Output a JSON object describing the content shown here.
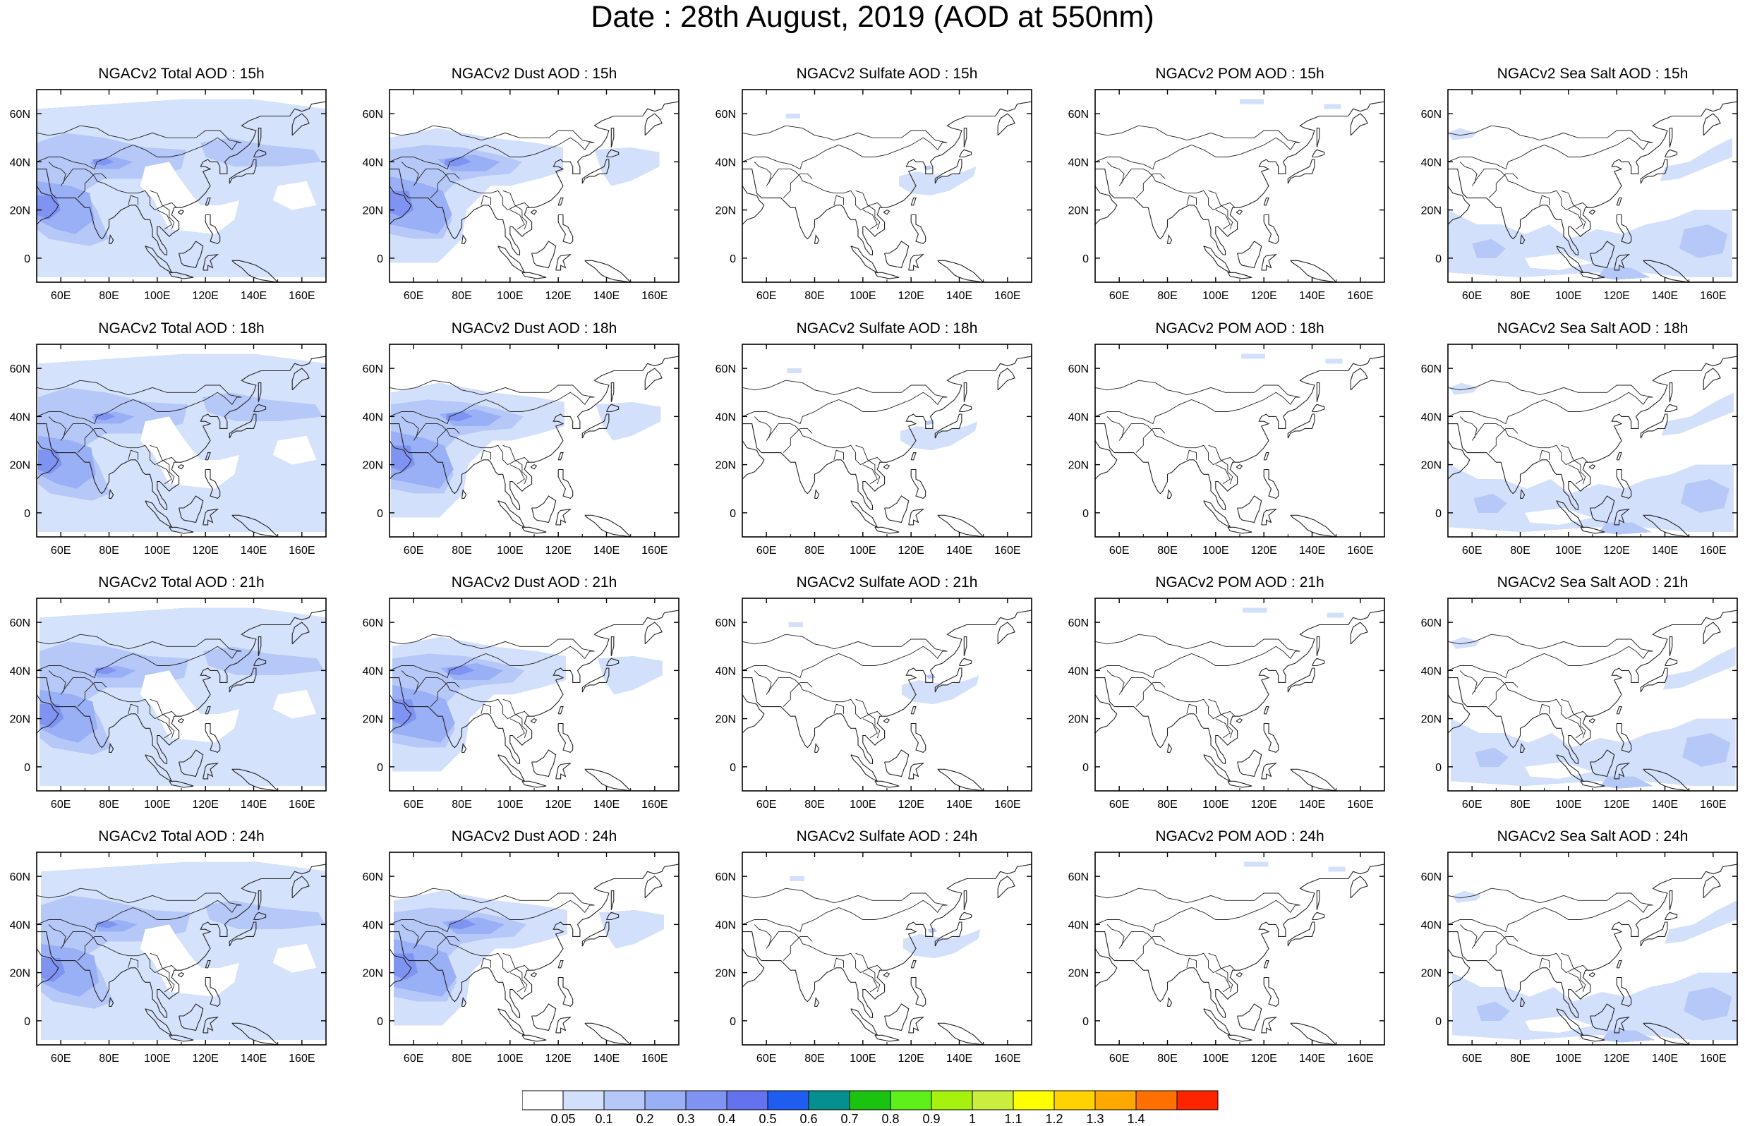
{
  "title": "Date : 28th August, 2019 (AOD at 550nm)",
  "longitude_ticks": [
    "60E",
    "80E",
    "100E",
    "120E",
    "140E",
    "160E"
  ],
  "latitude_ticks": [
    "60N",
    "40N",
    "20N",
    "0"
  ],
  "map_extent": {
    "lon": [
      50,
      170
    ],
    "lat": [
      -10,
      70
    ]
  },
  "columns": [
    "Total",
    "Dust",
    "Sulfate",
    "POM",
    "Sea Salt"
  ],
  "hours": [
    "15h",
    "18h",
    "21h",
    "24h"
  ],
  "panel_titles": [
    [
      "NGACv2 Total AOD : 15h",
      "NGACv2 Dust AOD : 15h",
      "NGACv2 Sulfate AOD : 15h",
      "NGACv2 POM AOD : 15h",
      "NGACv2 Sea Salt AOD : 15h"
    ],
    [
      "NGACv2 Total AOD : 18h",
      "NGACv2 Dust AOD : 18h",
      "NGACv2 Sulfate AOD : 18h",
      "NGACv2 POM AOD : 18h",
      "NGACv2 Sea Salt AOD : 18h"
    ],
    [
      "NGACv2 Total AOD : 21h",
      "NGACv2 Dust AOD : 21h",
      "NGACv2 Sulfate AOD : 21h",
      "NGACv2 POM AOD : 21h",
      "NGACv2 Sea Salt AOD : 21h"
    ],
    [
      "NGACv2 Total AOD : 24h",
      "NGACv2 Dust AOD : 24h",
      "NGACv2 Sulfate AOD : 24h",
      "NGACv2 POM AOD : 24h",
      "NGACv2 Sea Salt  AOD : 24h"
    ]
  ],
  "colorbar": {
    "labels": [
      "0.05",
      "0.1",
      "0.2",
      "0.3",
      "0.4",
      "0.5",
      "0.6",
      "0.7",
      "0.8",
      "0.9",
      "1",
      "1.1",
      "1.2",
      "1.3",
      "1.4"
    ],
    "colors": [
      "#ffffff",
      "#d3e0fb",
      "#b6c8f8",
      "#99aff6",
      "#7f93f2",
      "#6572ed",
      "#1f5cf0",
      "#068f8f",
      "#19c310",
      "#5ef019",
      "#a6f20e",
      "#c9ee3d",
      "#ffff00",
      "#ffd200",
      "#ffa800",
      "#ff7000",
      "#ff2400"
    ]
  },
  "plume_colors": {
    "light": "#d3e0fb",
    "mid": "#b6c8f8",
    "strong": "#99aff6",
    "heavy": "#7f93f2"
  }
}
